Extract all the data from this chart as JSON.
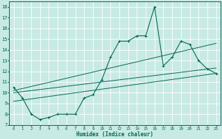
{
  "xlabel": "Humidex (Indice chaleur)",
  "background_color": "#c8eae5",
  "line_color": "#006655",
  "grid_color": "#ffffff",
  "xlim": [
    -0.5,
    23.5
  ],
  "ylim": [
    7,
    18.5
  ],
  "xticks": [
    0,
    1,
    2,
    3,
    4,
    5,
    6,
    7,
    8,
    9,
    10,
    11,
    12,
    13,
    14,
    15,
    16,
    17,
    18,
    19,
    20,
    21,
    22,
    23
  ],
  "yticks": [
    7,
    8,
    9,
    10,
    11,
    12,
    13,
    14,
    15,
    16,
    17,
    18
  ],
  "main_series": {
    "x": [
      0,
      1,
      2,
      3,
      4,
      5,
      6,
      7,
      8,
      9,
      10,
      11,
      12,
      13,
      14,
      15,
      16,
      17,
      18,
      19,
      20,
      21,
      22,
      23
    ],
    "y": [
      10.5,
      9.5,
      8.0,
      7.5,
      7.7,
      8.0,
      8.0,
      8.0,
      9.5,
      9.8,
      11.2,
      13.3,
      14.8,
      14.8,
      15.3,
      15.3,
      18.0,
      12.5,
      13.3,
      14.8,
      14.5,
      13.0,
      12.2,
      11.8
    ]
  },
  "trend_lines": [
    {
      "x": [
        0,
        23
      ],
      "y": [
        9.2,
        11.8
      ]
    },
    {
      "x": [
        0,
        23
      ],
      "y": [
        10.2,
        14.6
      ]
    },
    {
      "x": [
        0,
        23
      ],
      "y": [
        10.0,
        12.3
      ]
    }
  ]
}
